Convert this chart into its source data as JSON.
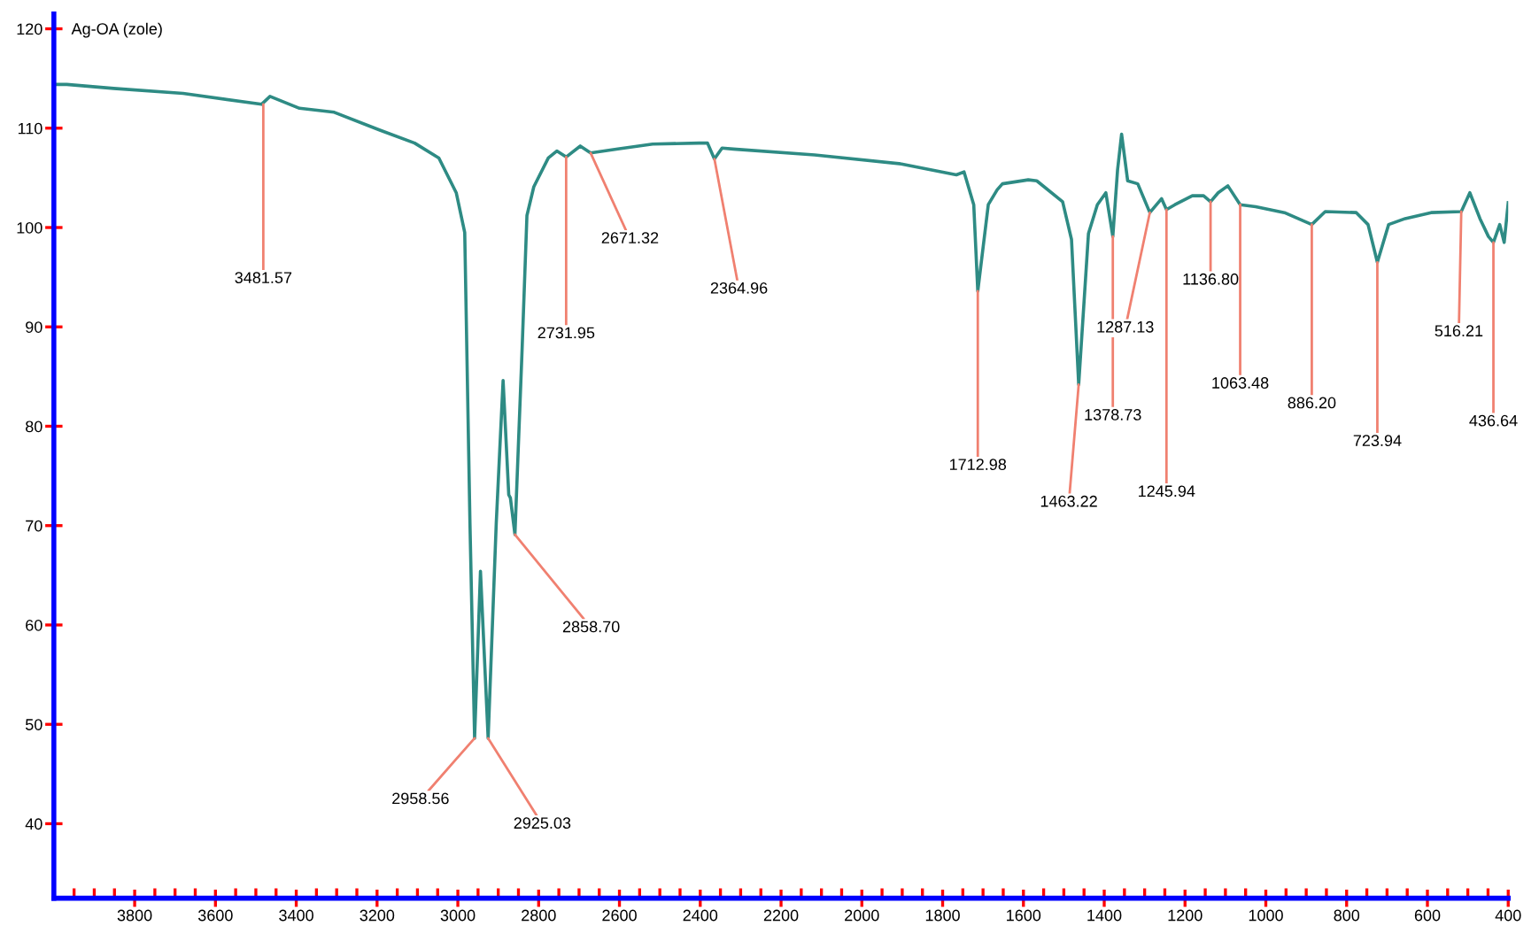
{
  "chart_data": {
    "type": "line",
    "title": "Ag-OA (zole)",
    "x": [
      4000,
      3968,
      3852,
      3680,
      3486,
      3465,
      3392,
      3306,
      3193,
      3107,
      3047,
      3004,
      2983,
      2970,
      2958.56,
      2944,
      2925.03,
      2905,
      2888,
      2874,
      2870,
      2858.7,
      2841,
      2829,
      2812,
      2776,
      2755,
      2731.95,
      2697,
      2671.32,
      2604,
      2518,
      2403,
      2382,
      2364.96,
      2346,
      2318,
      2117,
      1902,
      1766,
      1747,
      1723,
      1712.98,
      1687,
      1665,
      1652,
      1588,
      1567,
      1503,
      1481,
      1463.22,
      1439,
      1417,
      1396,
      1378.73,
      1367,
      1357,
      1342,
      1317,
      1287.13,
      1258,
      1245.94,
      1225,
      1182,
      1154,
      1136.8,
      1118,
      1094,
      1063.48,
      1025,
      954,
      886.2,
      853,
      776,
      747,
      723.94,
      696,
      655,
      591,
      516.21,
      495,
      470,
      449,
      436.64,
      421,
      410,
      400
    ],
    "series": [
      {
        "color": "#2e8b84",
        "values": [
          114.4,
          114.4,
          114.0,
          113.5,
          112.4,
          113.2,
          112.0,
          111.6,
          109.8,
          108.5,
          107.0,
          103.5,
          99.5,
          70.2,
          48.6,
          65.4,
          48.6,
          70.2,
          84.6,
          73.1,
          72.8,
          69.1,
          87.7,
          101.2,
          104.1,
          107.0,
          107.7,
          107.1,
          108.2,
          107.5,
          107.9,
          108.4,
          108.5,
          108.5,
          106.9,
          108.0,
          107.9,
          107.3,
          106.4,
          105.3,
          105.6,
          102.3,
          93.6,
          102.3,
          103.8,
          104.4,
          104.8,
          104.7,
          102.6,
          98.8,
          84.2,
          99.4,
          102.3,
          103.5,
          99.1,
          105.8,
          109.4,
          104.7,
          104.4,
          101.5,
          102.9,
          101.8,
          102.3,
          103.2,
          103.2,
          102.6,
          103.5,
          104.2,
          102.3,
          102.1,
          101.5,
          100.3,
          101.6,
          101.5,
          100.3,
          96.5,
          100.3,
          100.9,
          101.5,
          101.6,
          103.5,
          100.9,
          99.1,
          98.5,
          100.3,
          98.5,
          102.5
        ]
      }
    ],
    "annotations": [
      {
        "text": "3481.57",
        "x": 3481.57,
        "y": 112.4
      },
      {
        "text": "2958.56",
        "x": 2958.56,
        "y": 48.6
      },
      {
        "text": "2925.03",
        "x": 2925.03,
        "y": 48.6
      },
      {
        "text": "2858.70",
        "x": 2858.7,
        "y": 69.1
      },
      {
        "text": "2731.95",
        "x": 2731.95,
        "y": 107.1
      },
      {
        "text": "2671.32",
        "x": 2671.32,
        "y": 107.5
      },
      {
        "text": "2364.96",
        "x": 2364.96,
        "y": 106.9
      },
      {
        "text": "1712.98",
        "x": 1712.98,
        "y": 93.6
      },
      {
        "text": "1463.22",
        "x": 1463.22,
        "y": 84.2
      },
      {
        "text": "1378.73",
        "x": 1378.73,
        "y": 99.1
      },
      {
        "text": "1287.13",
        "x": 1287.13,
        "y": 101.5
      },
      {
        "text": "1245.94",
        "x": 1245.94,
        "y": 101.8
      },
      {
        "text": "1136.80",
        "x": 1136.8,
        "y": 102.6
      },
      {
        "text": "1063.48",
        "x": 1063.48,
        "y": 102.3
      },
      {
        "text": "886.20",
        "x": 886.2,
        "y": 100.3
      },
      {
        "text": "723.94",
        "x": 723.94,
        "y": 96.5
      },
      {
        "text": "516.21",
        "x": 516.21,
        "y": 101.6
      },
      {
        "text": "436.64",
        "x": 436.64,
        "y": 98.5
      }
    ],
    "xlim": [
      4000,
      400
    ],
    "ylim": [
      32.5,
      121.5
    ],
    "xticks": [
      {
        "value": 3950,
        "label": null
      },
      {
        "value": 3900,
        "label": null
      },
      {
        "value": 3850,
        "label": null
      },
      3800,
      {
        "value": 3750,
        "label": null
      },
      {
        "value": 3700,
        "label": null
      },
      {
        "value": 3650,
        "label": null
      },
      3600,
      {
        "value": 3550,
        "label": null
      },
      {
        "value": 3500,
        "label": null
      },
      {
        "value": 3450,
        "label": null
      },
      3400,
      {
        "value": 3350,
        "label": null
      },
      {
        "value": 3300,
        "label": null
      },
      {
        "value": 3250,
        "label": null
      },
      3200,
      {
        "value": 3150,
        "label": null
      },
      {
        "value": 3100,
        "label": null
      },
      {
        "value": 3050,
        "label": null
      },
      3000,
      {
        "value": 2950,
        "label": null
      },
      {
        "value": 2900,
        "label": null
      },
      {
        "value": 2850,
        "label": null
      },
      2800,
      {
        "value": 2750,
        "label": null
      },
      {
        "value": 2700,
        "label": null
      },
      {
        "value": 2650,
        "label": null
      },
      2600,
      {
        "value": 2550,
        "label": null
      },
      {
        "value": 2500,
        "label": null
      },
      {
        "value": 2450,
        "label": null
      },
      2400,
      {
        "value": 2350,
        "label": null
      },
      {
        "value": 2300,
        "label": null
      },
      {
        "value": 2250,
        "label": null
      },
      2200,
      {
        "value": 2150,
        "label": null
      },
      {
        "value": 2100,
        "label": null
      },
      {
        "value": 2050,
        "label": null
      },
      2000,
      {
        "value": 1950,
        "label": null
      },
      {
        "value": 1900,
        "label": null
      },
      {
        "value": 1850,
        "label": null
      },
      1800,
      {
        "value": 1750,
        "label": null
      },
      {
        "value": 1700,
        "label": null
      },
      {
        "value": 1650,
        "label": null
      },
      1600,
      {
        "value": 1550,
        "label": null
      },
      {
        "value": 1500,
        "label": null
      },
      {
        "value": 1450,
        "label": null
      },
      1400,
      {
        "value": 1350,
        "label": null
      },
      {
        "value": 1300,
        "label": null
      },
      {
        "value": 1250,
        "label": null
      },
      1200,
      {
        "value": 1150,
        "label": null
      },
      {
        "value": 1100,
        "label": null
      },
      {
        "value": 1050,
        "label": null
      },
      1000,
      {
        "value": 950,
        "label": null
      },
      {
        "value": 900,
        "label": null
      },
      {
        "value": 850,
        "label": null
      },
      800,
      {
        "value": 750,
        "label": null
      },
      {
        "value": 700,
        "label": null
      },
      {
        "value": 650,
        "label": null
      },
      600,
      {
        "value": 550,
        "label": null
      },
      {
        "value": 500,
        "label": null
      },
      {
        "value": 450,
        "label": null
      },
      400
    ],
    "yticks": [
      40,
      50,
      60,
      70,
      80,
      90,
      100,
      110,
      120
    ],
    "grid": false,
    "legend": false,
    "marker": "none",
    "line_style": "solid"
  }
}
